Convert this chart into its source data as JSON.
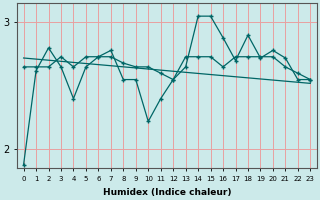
{
  "xlabel": "Humidex (Indice chaleur)",
  "ylabel": "",
  "background_color": "#cceaea",
  "grid_color": "#e8a0a0",
  "line_color": "#006666",
  "xlim": [
    -0.5,
    23.5
  ],
  "ylim": [
    1.85,
    3.15
  ],
  "yticks": [
    2,
    3
  ],
  "xticks": [
    0,
    1,
    2,
    3,
    4,
    5,
    6,
    7,
    8,
    9,
    10,
    11,
    12,
    13,
    14,
    15,
    16,
    17,
    18,
    19,
    20,
    21,
    22,
    23
  ],
  "line1_x": [
    0,
    1,
    2,
    3,
    4,
    5,
    6,
    7,
    8,
    9,
    10,
    11,
    12,
    13,
    14,
    15,
    16,
    17,
    18,
    19,
    20,
    21,
    22,
    23
  ],
  "line1_y": [
    1.88,
    2.62,
    2.8,
    2.65,
    2.4,
    2.65,
    2.73,
    2.78,
    2.55,
    2.55,
    2.22,
    2.4,
    2.55,
    2.65,
    3.05,
    3.05,
    2.88,
    2.7,
    2.9,
    2.72,
    2.78,
    2.72,
    2.55,
    2.55
  ],
  "line2_x": [
    0,
    1,
    2,
    3,
    4,
    5,
    6,
    7,
    8,
    9,
    10,
    11,
    12,
    13,
    14,
    15,
    16,
    17,
    18,
    19,
    20,
    21,
    22,
    23
  ],
  "line2_y": [
    2.65,
    2.65,
    2.65,
    2.73,
    2.65,
    2.73,
    2.73,
    2.73,
    2.68,
    2.65,
    2.65,
    2.6,
    2.55,
    2.73,
    2.73,
    2.73,
    2.65,
    2.73,
    2.73,
    2.73,
    2.73,
    2.65,
    2.6,
    2.55
  ],
  "line3_x": [
    0,
    23
  ],
  "line3_y": [
    2.72,
    2.52
  ]
}
